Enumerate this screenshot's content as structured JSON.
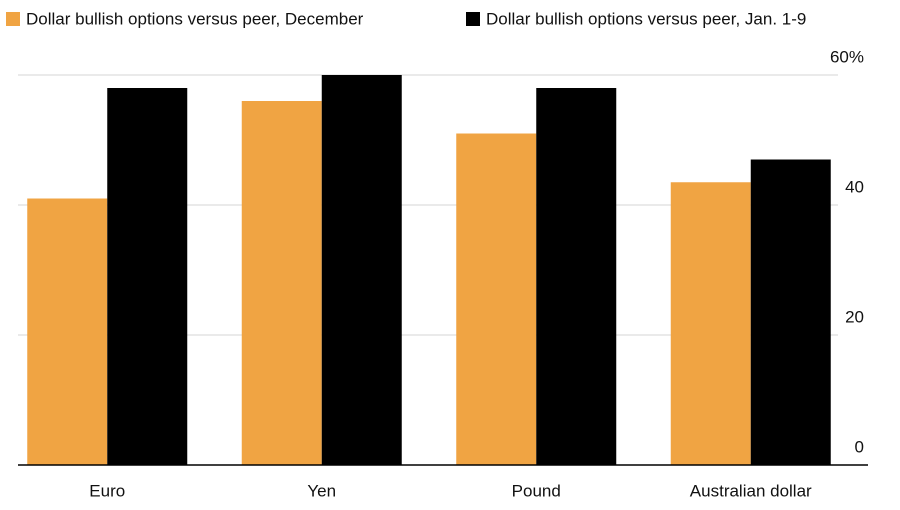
{
  "chart_data": {
    "type": "bar",
    "categories": [
      "Euro",
      "Yen",
      "Pound",
      "Australian dollar"
    ],
    "series": [
      {
        "name": "Dollar bullish options versus peer, December",
        "color": "#f0a443",
        "values": [
          41,
          56,
          51,
          43.5
        ]
      },
      {
        "name": "Dollar bullish options versus peer, Jan. 1-9",
        "color": "#000000",
        "values": [
          58,
          60,
          58,
          47
        ]
      }
    ],
    "ylim": [
      0,
      60
    ],
    "yticks": [
      0,
      20,
      40,
      {
        "value": 60,
        "label": "60%"
      }
    ],
    "grid": true,
    "legend": "top"
  }
}
